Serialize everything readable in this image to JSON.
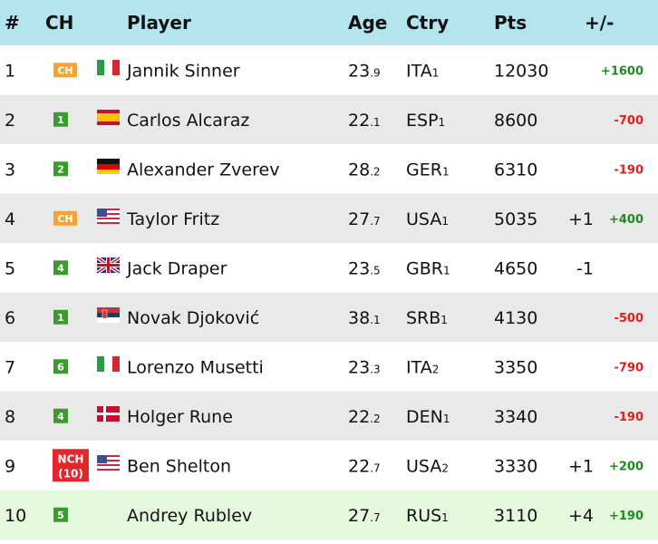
{
  "header": {
    "rank": "#",
    "ch": "CH",
    "player": "Player",
    "age": "Age",
    "country": "Ctry",
    "pts": "Pts",
    "change": "+/-"
  },
  "rows": [
    {
      "rank": "1",
      "ch": "CH",
      "ch_color": "#f6a22f",
      "player": "Jannik Sinner",
      "age": "23",
      "age_dec": ".9",
      "country": "ITA",
      "country_rank": "1",
      "pts": "12030",
      "pts_change": "+1600",
      "pts_change_color": "#1f8a1f",
      "background": "#ffffff"
    },
    {
      "rank": "2",
      "ch": "1",
      "ch_color": "#3c9a2e",
      "player": "Carlos Alcaraz",
      "age": "22",
      "age_dec": ".1",
      "country": "ESP",
      "country_rank": "1",
      "pts": "8600",
      "pts_change": "-700",
      "pts_change_color": "#e01e1e",
      "background": "#e9e9e9"
    },
    {
      "rank": "3",
      "ch": "2",
      "ch_color": "#3c9a2e",
      "player": "Alexander Zverev",
      "age": "28",
      "age_dec": ".2",
      "country": "GER",
      "country_rank": "1",
      "pts": "6310",
      "pts_change": "-190",
      "pts_change_color": "#e01e1e",
      "background": "#ffffff"
    },
    {
      "rank": "4",
      "ch": "CH",
      "ch_color": "#f6a22f",
      "player": "Taylor Fritz",
      "age": "27",
      "age_dec": ".7",
      "country": "USA",
      "country_rank": "1",
      "pts": "5035",
      "rank_change": "+1",
      "pts_change": "+400",
      "pts_change_color": "#1f8a1f",
      "background": "#e9e9e9"
    },
    {
      "rank": "5",
      "ch": "4",
      "ch_color": "#3c9a2e",
      "player": "Jack Draper",
      "age": "23",
      "age_dec": ".5",
      "country": "GBR",
      "country_rank": "1",
      "pts": "4650",
      "rank_change": "-1",
      "background": "#ffffff"
    },
    {
      "rank": "6",
      "ch": "1",
      "ch_color": "#3c9a2e",
      "player": "Novak Djoković",
      "age": "38",
      "age_dec": ".1",
      "country": "SRB",
      "country_rank": "1",
      "pts": "4130",
      "pts_change": "-500",
      "pts_change_color": "#e01e1e",
      "background": "#e9e9e9"
    },
    {
      "rank": "7",
      "ch": "6",
      "ch_color": "#3c9a2e",
      "player": "Lorenzo Musetti",
      "age": "23",
      "age_dec": ".3",
      "country": "ITA",
      "country_rank": "2",
      "pts": "3350",
      "pts_change": "-790",
      "pts_change_color": "#e01e1e",
      "background": "#ffffff"
    },
    {
      "rank": "8",
      "ch": "4",
      "ch_color": "#3c9a2e",
      "player": "Holger Rune",
      "age": "22",
      "age_dec": ".2",
      "country": "DEN",
      "country_rank": "1",
      "pts": "3340",
      "pts_change": "-190",
      "pts_change_color": "#e01e1e",
      "background": "#e9e9e9"
    },
    {
      "rank": "9",
      "ch": "NCH",
      "ch_sub": "(10)",
      "ch_color": "#e3262b",
      "player": "Ben Shelton",
      "age": "22",
      "age_dec": ".7",
      "country": "USA",
      "country_rank": "2",
      "pts": "3330",
      "rank_change": "+1",
      "pts_change": "+200",
      "pts_change_color": "#1f8a1f",
      "background": "#ffffff"
    },
    {
      "rank": "10",
      "ch": "5",
      "ch_color": "#3c9a2e",
      "player": "Andrey Rublev",
      "age": "27",
      "age_dec": ".7",
      "country": "RUS",
      "country_rank": "1",
      "pts": "3110",
      "rank_change": "+4",
      "pts_change": "+190",
      "pts_change_color": "#1f8a1f",
      "background": "#e4f8de"
    }
  ]
}
